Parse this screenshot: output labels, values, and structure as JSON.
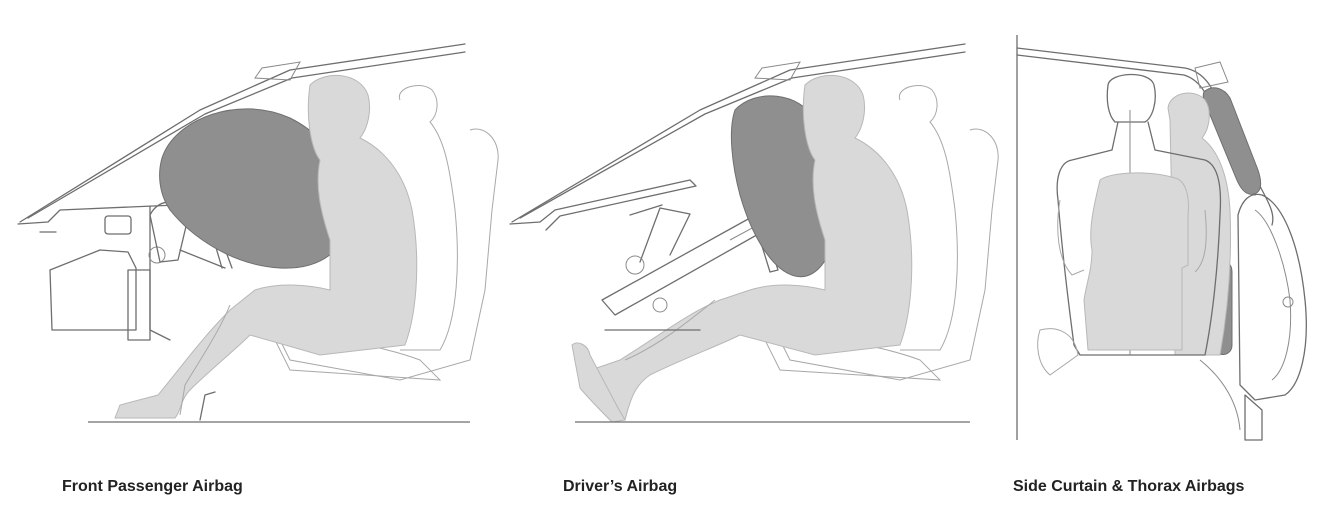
{
  "panels": [
    {
      "caption": "Front Passenger Airbag"
    },
    {
      "caption": "Driver’s Airbag"
    },
    {
      "caption": "Side Curtain & Thorax Airbags"
    }
  ],
  "colors": {
    "airbag": "#8f8f8f",
    "occupant": "#d9d9d9",
    "outline": "#6e6e6e",
    "caption_text": "#222222"
  }
}
